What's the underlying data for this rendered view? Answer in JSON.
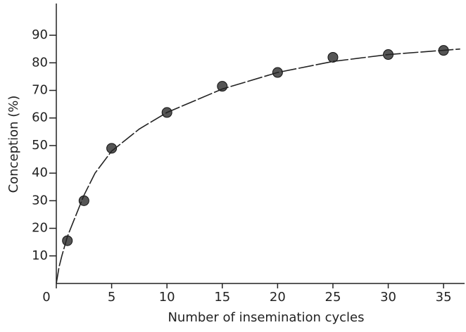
{
  "chart_data": {
    "type": "scatter",
    "x_label": "Number of insemination cycles",
    "y_label": "Conception (%)",
    "series": [
      {
        "kind": "points",
        "color": "#555555",
        "x": [
          1,
          2.5,
          5,
          10,
          15,
          20,
          25,
          30,
          35
        ],
        "values": [
          15.5,
          30,
          49,
          62,
          71.5,
          76.5,
          82,
          83,
          84.5
        ]
      },
      {
        "kind": "line",
        "color": "#222222",
        "x": [
          0,
          0.25,
          0.5,
          1,
          1.5,
          2.5,
          3.5,
          5,
          7.5,
          10,
          15,
          20,
          25,
          30,
          36.5
        ],
        "values": [
          0,
          6,
          10,
          17,
          22,
          32,
          40,
          48,
          56,
          62,
          70.5,
          76.5,
          80.5,
          83,
          85
        ]
      }
    ],
    "xlim": [
      0,
      36.9
    ],
    "ylim": [
      0,
      101.5
    ],
    "xticks": [
      0,
      5,
      10,
      15,
      20,
      25,
      30,
      35
    ],
    "yticks": [
      10,
      20,
      30,
      40,
      50,
      60,
      70,
      80,
      90
    ],
    "grid": false
  }
}
